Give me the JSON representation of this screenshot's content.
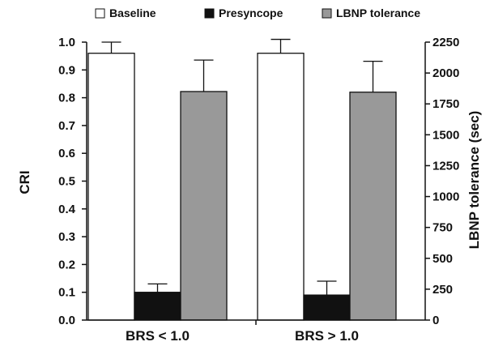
{
  "chart_data": {
    "type": "bar",
    "categories": [
      "BRS < 1.0",
      "BRS > 1.0"
    ],
    "series": [
      {
        "name": "Baseline",
        "axis": "left",
        "color": "#ffffff",
        "values": [
          0.96,
          0.96
        ],
        "error": [
          0.04,
          0.05
        ]
      },
      {
        "name": "Presyncope",
        "axis": "left",
        "color": "#111111",
        "values": [
          0.1,
          0.09
        ],
        "error": [
          0.03,
          0.05
        ]
      },
      {
        "name": "LBNP tolerance",
        "axis": "right",
        "color": "#999999",
        "values": [
          1850,
          1845
        ],
        "error": [
          255,
          250
        ]
      }
    ],
    "ylabel": "CRI",
    "ylabel_right": "LBNP tolerance (sec)",
    "ylim": [
      0,
      1.0
    ],
    "ylim_right": [
      0,
      2250
    ],
    "yticks": [
      "0.0",
      "0.1",
      "0.2",
      "0.3",
      "0.4",
      "0.5",
      "0.6",
      "0.7",
      "0.8",
      "0.9",
      "1.0"
    ],
    "yticks_right": [
      "0",
      "250",
      "500",
      "750",
      "1000",
      "1250",
      "1500",
      "1750",
      "2000",
      "2250"
    ],
    "legend_position": "top",
    "grid": false
  }
}
